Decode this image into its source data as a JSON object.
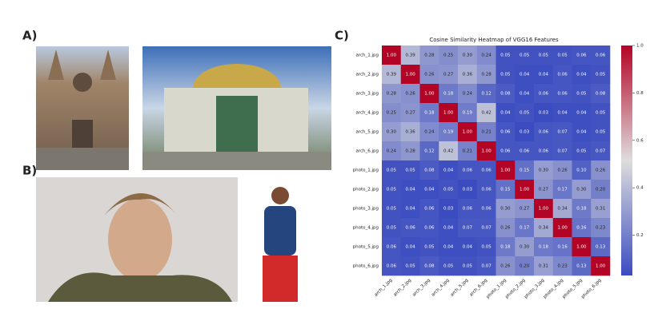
{
  "panels": [
    {
      "label": "A)"
    },
    {
      "label": "B)"
    },
    {
      "label": "C)"
    }
  ],
  "chart_data": {
    "type": "heatmap",
    "title": "Cosine Similarity Heatmap of VGG16 Features",
    "categories": [
      "arch_1.jpg",
      "arch_2.jpg",
      "arch_3.jpg",
      "arch_4.jpg",
      "arch_5.jpg",
      "arch_6.jpg",
      "photo_1.jpg",
      "photo_2.jpg",
      "photo_3.jpg",
      "photo_4.jpg",
      "photo_5.jpg",
      "photo_6.jpg"
    ],
    "values": [
      [
        1.0,
        0.39,
        0.28,
        0.25,
        0.3,
        0.24,
        0.05,
        0.05,
        0.05,
        0.05,
        0.06,
        0.06
      ],
      [
        0.39,
        1.0,
        0.26,
        0.27,
        0.36,
        0.28,
        0.05,
        0.04,
        0.04,
        0.06,
        0.04,
        0.05
      ],
      [
        0.28,
        0.26,
        1.0,
        0.18,
        0.24,
        0.12,
        0.08,
        0.04,
        0.06,
        0.06,
        0.05,
        0.08
      ],
      [
        0.25,
        0.27,
        0.18,
        1.0,
        0.19,
        0.42,
        0.04,
        0.05,
        0.03,
        0.04,
        0.04,
        0.05
      ],
      [
        0.3,
        0.36,
        0.24,
        0.19,
        1.0,
        0.21,
        0.06,
        0.03,
        0.06,
        0.07,
        0.04,
        0.05
      ],
      [
        0.24,
        0.28,
        0.12,
        0.42,
        0.21,
        1.0,
        0.06,
        0.06,
        0.06,
        0.07,
        0.05,
        0.07
      ],
      [
        0.05,
        0.05,
        0.08,
        0.04,
        0.06,
        0.06,
        1.0,
        0.15,
        0.3,
        0.26,
        0.1,
        0.26
      ],
      [
        0.05,
        0.04,
        0.04,
        0.05,
        0.03,
        0.06,
        0.15,
        1.0,
        0.27,
        0.17,
        0.3,
        0.2
      ],
      [
        0.05,
        0.04,
        0.06,
        0.03,
        0.06,
        0.06,
        0.3,
        0.27,
        1.0,
        0.34,
        0.18,
        0.31
      ],
      [
        0.05,
        0.06,
        0.06,
        0.04,
        0.07,
        0.07,
        0.26,
        0.17,
        0.34,
        1.0,
        0.16,
        0.23
      ],
      [
        0.06,
        0.04,
        0.05,
        0.04,
        0.04,
        0.05,
        0.18,
        0.3,
        0.18,
        0.16,
        1.0,
        0.13
      ],
      [
        0.06,
        0.05,
        0.08,
        0.05,
        0.05,
        0.07,
        0.26,
        0.2,
        0.31,
        0.23,
        0.13,
        1.0
      ]
    ],
    "value_labels": [
      [
        "1.00",
        "0.39",
        "0.28",
        "0.25",
        "0.30",
        "0.24",
        "0.05",
        "0.05",
        "0.05",
        "0.05",
        "0.06",
        "0.06"
      ],
      [
        "0.39",
        "1.00",
        "0.26",
        "0.27",
        "0.36",
        "0.28",
        "0.05",
        "0.04",
        "0.04",
        "0.06",
        "0.04",
        "0.05"
      ],
      [
        "0.28",
        "0.26",
        "1.00",
        "0.18",
        "0.24",
        "0.12",
        "0.08",
        "0.04",
        "0.06",
        "0.06",
        "0.05",
        "0.08"
      ],
      [
        "0.25",
        "0.27",
        "0.18",
        "1.00",
        "0.19",
        "0.42",
        "0.04",
        "0.05",
        "0.03",
        "0.04",
        "0.04",
        "0.05"
      ],
      [
        "0.30",
        "0.36",
        "0.24",
        "0.19",
        "1.00",
        "0.21",
        "0.06",
        "0.03",
        "0.06",
        "0.07",
        "0.04",
        "0.05"
      ],
      [
        "0.24",
        "0.28",
        "0.12",
        "0.42",
        "0.21",
        "1.00",
        "0.06",
        "0.06",
        "0.06",
        "0.07",
        "0.05",
        "0.07"
      ],
      [
        "0.05",
        "0.05",
        "0.08",
        "0.04",
        "0.06",
        "0.06",
        "1.00",
        "0.15",
        "0.30",
        "0.26",
        "0.10",
        "0.26"
      ],
      [
        "0.05",
        "0.04",
        "0.04",
        "0.05",
        "0.03",
        "0.06",
        "0.15",
        "1.00",
        "0.27",
        "0.17",
        "0.30",
        "0.20"
      ],
      [
        "0.05",
        "0.04",
        "0.06",
        "0.03",
        "0.06",
        "0.06",
        "0.30",
        "0.27",
        "1.00",
        "0.34",
        "0.18",
        "0.31"
      ],
      [
        "0.05",
        "0.06",
        "0.06",
        "0.04",
        "0.07",
        "0.07",
        "0.26",
        "0.17",
        "0.34",
        "1.00",
        "0.16",
        "0.23"
      ],
      [
        "0.06",
        "0.04",
        "0.05",
        "0.04",
        "0.04",
        "0.05",
        "0.18",
        "0.30",
        "0.18",
        "0.16",
        "1.00",
        "0.13"
      ],
      [
        "0.06",
        "0.05",
        "0.08",
        "0.05",
        "0.05",
        "0.07",
        "0.26",
        "0.20",
        "0.31",
        "0.23",
        "0.13",
        "1.00"
      ]
    ],
    "colors": [
      "#3b4cc0",
      "#dddddd",
      "#b40426"
    ],
    "clim": [
      0.03,
      1.0
    ],
    "cticks": [
      0.2,
      0.4,
      0.6,
      0.8,
      {
        "value": 1.0,
        "label": "1.0"
      }
    ]
  }
}
